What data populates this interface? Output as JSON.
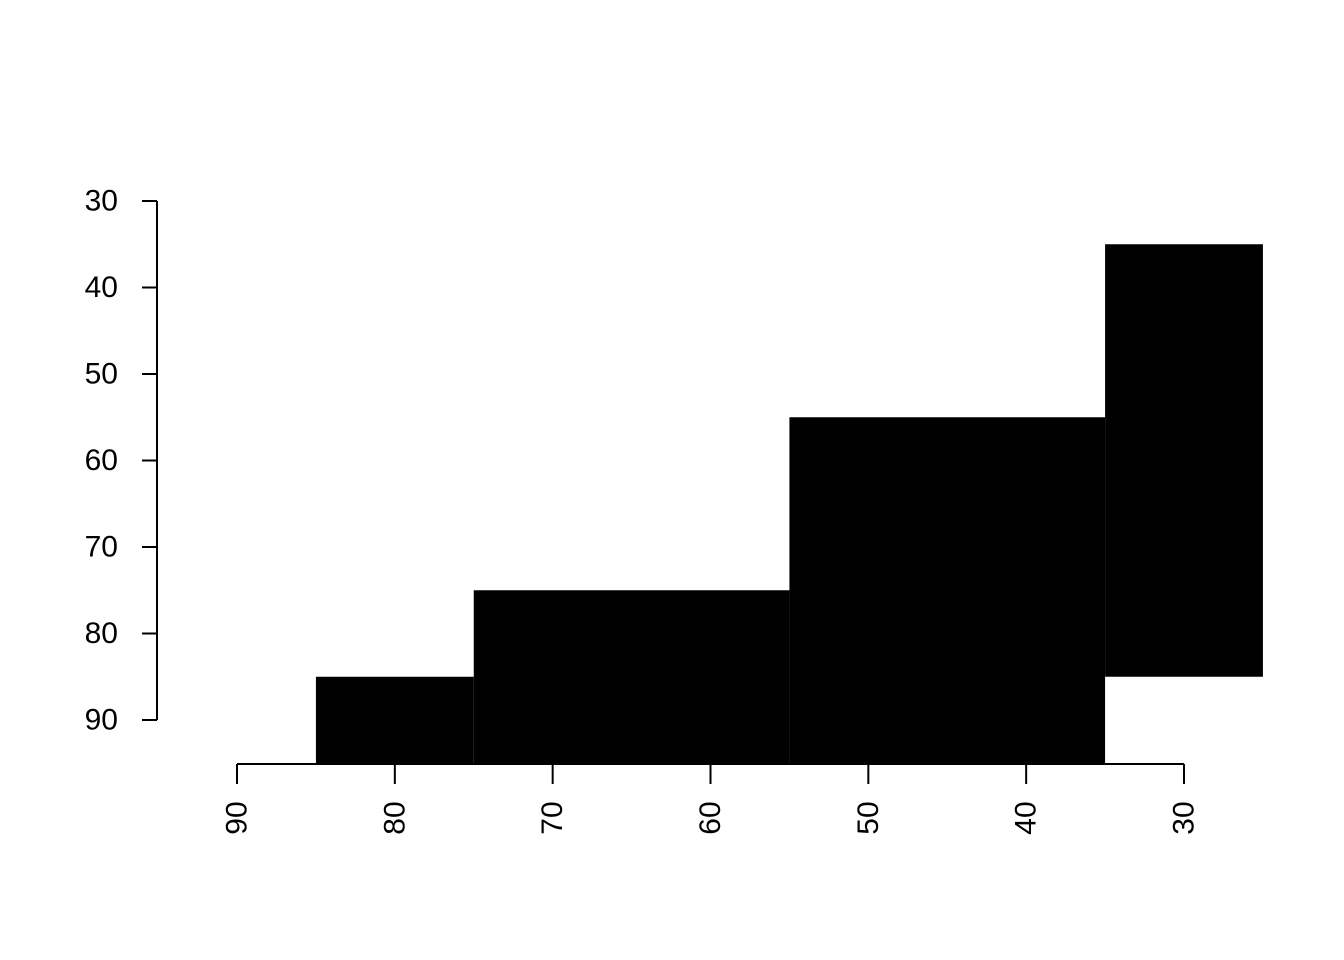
{
  "chart_data": {
    "type": "area",
    "color": "#000000",
    "background": "#ffffff",
    "x_axis": {
      "reversed": true,
      "ticks": [
        90,
        80,
        70,
        60,
        50,
        40,
        30
      ],
      "tick_labels": [
        "90",
        "80",
        "70",
        "60",
        "50",
        "40",
        "30"
      ],
      "label_orientation": "vertical",
      "range": [
        90,
        30
      ]
    },
    "y_axis": {
      "reversed": true,
      "ticks": [
        30,
        40,
        50,
        60,
        70,
        80,
        90
      ],
      "tick_labels": [
        "30",
        "40",
        "50",
        "60",
        "70",
        "80",
        "90"
      ],
      "range": [
        30,
        90
      ]
    },
    "blocks": [
      {
        "x": [
          85,
          75
        ],
        "y": [
          85,
          95
        ]
      },
      {
        "x": [
          75,
          55
        ],
        "y": [
          75,
          95
        ]
      },
      {
        "x": [
          55,
          35
        ],
        "y": [
          55,
          95
        ]
      },
      {
        "x": [
          35,
          25
        ],
        "y": [
          35,
          85
        ]
      }
    ],
    "title": "",
    "xlabel": "",
    "ylabel": "",
    "grid": false
  }
}
